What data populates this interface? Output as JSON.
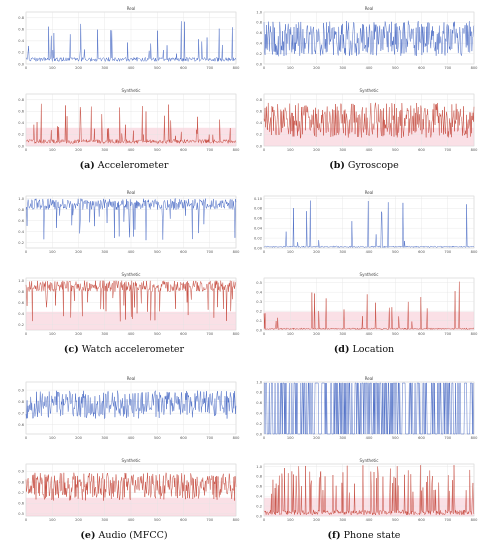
{
  "panels": [
    {
      "id": "a",
      "letter": "(a)",
      "caption": "Accelerometer",
      "charts": [
        {
          "title": "Real",
          "variant": "real",
          "yticks": [
            "0.0",
            "0.2",
            "0.4",
            "0.6",
            "0.8"
          ],
          "ymin": 0.0,
          "ymax": 0.9,
          "style": "spiky-low"
        },
        {
          "title": "Synthetic",
          "variant": "synthetic",
          "yticks": [
            "0.0",
            "0.2",
            "0.4",
            "0.6",
            "0.8"
          ],
          "ymin": 0.0,
          "ymax": 0.9,
          "style": "spiky-low"
        }
      ]
    },
    {
      "id": "b",
      "letter": "(b)",
      "caption": "Gyroscope",
      "charts": [
        {
          "title": "Real",
          "variant": "real",
          "yticks": [
            "0.0",
            "0.2",
            "0.4",
            "0.6",
            "0.8",
            "1.0"
          ],
          "ymin": 0.0,
          "ymax": 1.0,
          "style": "dense-mid"
        },
        {
          "title": "Synthetic",
          "variant": "synthetic",
          "yticks": [
            "0.0",
            "0.2",
            "0.4",
            "0.6",
            "0.8"
          ],
          "ymin": 0.0,
          "ymax": 0.9,
          "style": "dense-mid"
        }
      ]
    },
    {
      "id": "c",
      "letter": "(c)",
      "caption": "Watch accelerometer",
      "charts": [
        {
          "title": "Real",
          "variant": "real",
          "yticks": [
            "0.2",
            "0.4",
            "0.6",
            "0.8",
            "1.0"
          ],
          "ymin": 0.1,
          "ymax": 1.05,
          "style": "dense-high"
        },
        {
          "title": "Synthetic",
          "variant": "synthetic",
          "yticks": [
            "0.2",
            "0.4",
            "0.6",
            "0.8",
            "1.0"
          ],
          "ymin": 0.1,
          "ymax": 1.05,
          "style": "dense-high"
        }
      ]
    },
    {
      "id": "d",
      "letter": "(d)",
      "caption": "Location",
      "charts": [
        {
          "title": "Real",
          "variant": "real",
          "yticks": [
            "0.00",
            "0.02",
            "0.04",
            "0.06",
            "0.08",
            "0.10"
          ],
          "ymin": 0.0,
          "ymax": 0.105,
          "style": "sparse-spikes"
        },
        {
          "title": "Synthetic",
          "variant": "synthetic",
          "yticks": [
            "0.0",
            "0.1",
            "0.2",
            "0.3",
            "0.4",
            "0.5"
          ],
          "ymin": 0.0,
          "ymax": 0.55,
          "style": "sparse-spikes"
        }
      ]
    },
    {
      "id": "e",
      "letter": "(e)",
      "caption": "Audio (MFCC)",
      "charts": [
        {
          "title": "Real",
          "variant": "real",
          "yticks": [
            "0.6",
            "0.7",
            "0.8",
            "0.9"
          ],
          "ymin": 0.52,
          "ymax": 0.97,
          "style": "dense-band"
        },
        {
          "title": "Synthetic",
          "variant": "synthetic",
          "yticks": [
            "0.5",
            "0.6",
            "0.7",
            "0.8",
            "0.9"
          ],
          "ymin": 0.48,
          "ymax": 0.97,
          "style": "dense-band"
        }
      ]
    },
    {
      "id": "f",
      "letter": "(f)",
      "caption": "Phone state",
      "charts": [
        {
          "title": "Real",
          "variant": "real",
          "yticks": [
            "0.0",
            "0.2",
            "0.4",
            "0.6",
            "0.8",
            "1.0"
          ],
          "ymin": 0.0,
          "ymax": 1.0,
          "style": "binary"
        },
        {
          "title": "Synthetic",
          "variant": "synthetic",
          "yticks": [
            "0.0",
            "0.2",
            "0.4",
            "0.6",
            "0.8",
            "1.0"
          ],
          "ymin": 0.0,
          "ymax": 1.05,
          "style": "spiky-binary"
        }
      ]
    }
  ],
  "chart_data": {
    "type": "line",
    "x_ticks": [
      "0",
      "100",
      "200",
      "300",
      "400",
      "500",
      "600",
      "700",
      "800"
    ],
    "x_range": [
      0,
      800
    ],
    "colors": {
      "real": "#3b5fbf",
      "synthetic": "#c0392b",
      "synthetic_shade": "#f5c6d2",
      "grid": "#e3e3e3"
    }
  }
}
